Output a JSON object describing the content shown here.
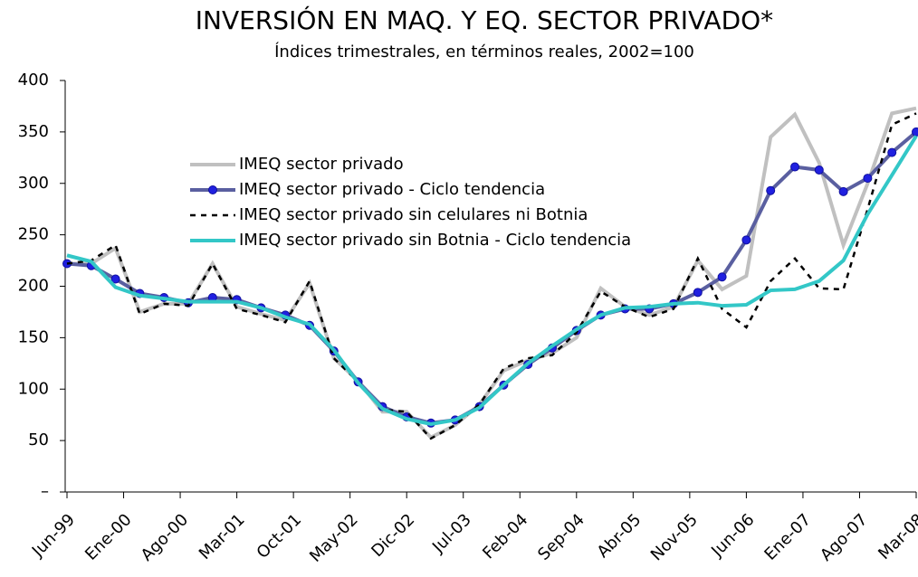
{
  "chart_data": {
    "type": "line",
    "title": "INVERSIÓN EN MAQ. Y EQ. SECTOR PRIVADO*",
    "subtitle": "Índices trimestrales, en términos reales, 2002=100",
    "x": [
      "1999-06",
      "1999-09",
      "1999-12",
      "2000-03",
      "2000-06",
      "2000-09",
      "2000-12",
      "2001-03",
      "2001-06",
      "2001-09",
      "2001-12",
      "2002-03",
      "2002-06",
      "2002-09",
      "2002-12",
      "2003-03",
      "2003-06",
      "2003-09",
      "2003-12",
      "2004-03",
      "2004-06",
      "2004-09",
      "2004-12",
      "2005-03",
      "2005-06",
      "2005-09",
      "2005-12",
      "2006-03",
      "2006-06",
      "2006-09",
      "2006-12",
      "2007-03",
      "2007-06",
      "2007-09",
      "2007-12",
      "2008-03"
    ],
    "xticks": [
      {
        "value": "1999-06",
        "label": "Jun-99"
      },
      {
        "value": "2000-01",
        "label": "Ene-00"
      },
      {
        "value": "2000-08",
        "label": "Ago-00"
      },
      {
        "value": "2001-03",
        "label": "Mar-01"
      },
      {
        "value": "2001-10",
        "label": "Oct-01"
      },
      {
        "value": "2002-05",
        "label": "May-02"
      },
      {
        "value": "2002-12",
        "label": "Dic-02"
      },
      {
        "value": "2003-07",
        "label": "Jul-03"
      },
      {
        "value": "2004-02",
        "label": "Feb-04"
      },
      {
        "value": "2004-09",
        "label": "Sep-04"
      },
      {
        "value": "2005-04",
        "label": "Abr-05"
      },
      {
        "value": "2005-11",
        "label": "Nov-05"
      },
      {
        "value": "2006-06",
        "label": "Jun-06"
      },
      {
        "value": "2007-01",
        "label": "Ene-07"
      },
      {
        "value": "2007-08",
        "label": "Ago-07"
      },
      {
        "value": "2008-03",
        "label": "Mar-08"
      }
    ],
    "ylim": [
      0,
      400
    ],
    "yticks": [
      {
        "value": 0,
        "label": "–"
      },
      50,
      100,
      150,
      200,
      250,
      300,
      350,
      400
    ],
    "series": [
      {
        "name": "IMEQ sector privado",
        "color": "#c0c0c0",
        "style": "solid",
        "values": [
          222,
          222,
          237,
          175,
          183,
          183,
          222,
          180,
          173,
          167,
          203,
          130,
          108,
          78,
          78,
          53,
          65,
          85,
          118,
          128,
          135,
          150,
          198,
          180,
          172,
          180,
          225,
          197,
          210,
          345,
          367,
          320,
          240,
          300,
          368,
          373
        ]
      },
      {
        "name": "IMEQ sector privado - Ciclo tendencia",
        "color": "#5a5fa0",
        "style": "dots",
        "values": [
          222,
          220,
          207,
          193,
          189,
          184,
          189,
          187,
          179,
          172,
          162,
          137,
          107,
          83,
          73,
          67,
          70,
          83,
          104,
          124,
          140,
          157,
          172,
          178,
          178,
          183,
          194,
          209,
          245,
          293,
          316,
          313,
          292,
          305,
          330,
          350
        ]
      },
      {
        "name": "IMEQ sector privado sin celulares ni Botnia",
        "color": "#000000",
        "style": "dashed",
        "values": [
          222,
          225,
          240,
          173,
          183,
          181,
          222,
          178,
          172,
          165,
          205,
          130,
          107,
          80,
          78,
          52,
          65,
          85,
          120,
          130,
          133,
          155,
          195,
          180,
          170,
          178,
          227,
          178,
          160,
          205,
          227,
          198,
          197,
          275,
          357,
          368
        ]
      },
      {
        "name": "IMEQ sector privado sin Botnia - Ciclo tendencia",
        "color": "#33c7c7",
        "style": "solid",
        "values": [
          230,
          224,
          199,
          191,
          188,
          185,
          185,
          185,
          179,
          170,
          163,
          138,
          106,
          81,
          71,
          66,
          70,
          82,
          104,
          125,
          142,
          158,
          172,
          179,
          180,
          183,
          184,
          181,
          182,
          196,
          197,
          205,
          225,
          270,
          308,
          346
        ]
      }
    ]
  }
}
